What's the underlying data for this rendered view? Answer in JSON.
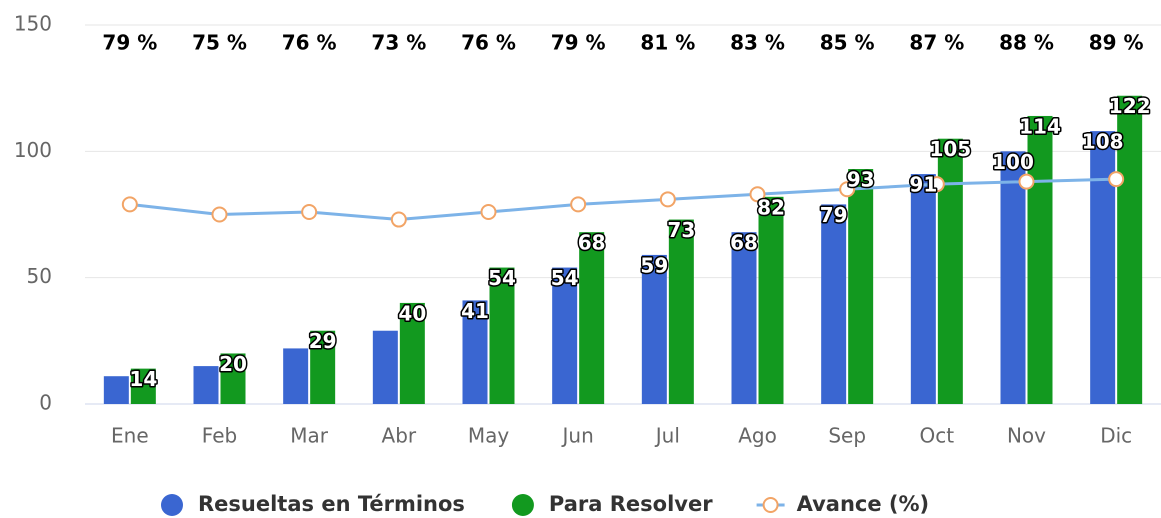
{
  "chart_data": {
    "type": "bar",
    "categories": [
      "Ene",
      "Feb",
      "Mar",
      "Abr",
      "May",
      "Jun",
      "Jul",
      "Ago",
      "Sep",
      "Oct",
      "Nov",
      "Dic"
    ],
    "series": [
      {
        "name": "Resueltas en Términos",
        "color": "#3a66d1",
        "type": "bar",
        "values": [
          11,
          15,
          22,
          29,
          41,
          54,
          59,
          68,
          79,
          91,
          100,
          108
        ],
        "value_labels": [
          null,
          null,
          null,
          null,
          "41",
          "54",
          "59",
          "68",
          "79",
          "91",
          "100",
          "108"
        ]
      },
      {
        "name": "Para Resolver",
        "color": "#12991f",
        "type": "bar",
        "values": [
          14,
          20,
          29,
          40,
          54,
          68,
          73,
          82,
          93,
          105,
          114,
          122
        ],
        "value_labels": [
          "14",
          "20",
          "29",
          "40",
          "54",
          "68",
          "73",
          "82",
          "93",
          "105",
          "114",
          "122"
        ]
      },
      {
        "name": "Avance (%)",
        "color": "#7db3e8",
        "marker_color": "#f2a466",
        "type": "line",
        "values": [
          79,
          75,
          76,
          73,
          76,
          79,
          81,
          83,
          85,
          87,
          88,
          89
        ],
        "value_labels": [
          "79 %",
          "75 %",
          "76 %",
          "73 %",
          "76 %",
          "79 %",
          "81 %",
          "83 %",
          "85 %",
          "87 %",
          "88 %",
          "89 %"
        ]
      }
    ],
    "ylim": [
      0,
      150
    ],
    "yticks": [
      0,
      50,
      100,
      150
    ],
    "grid": true,
    "legend": "bottom"
  }
}
